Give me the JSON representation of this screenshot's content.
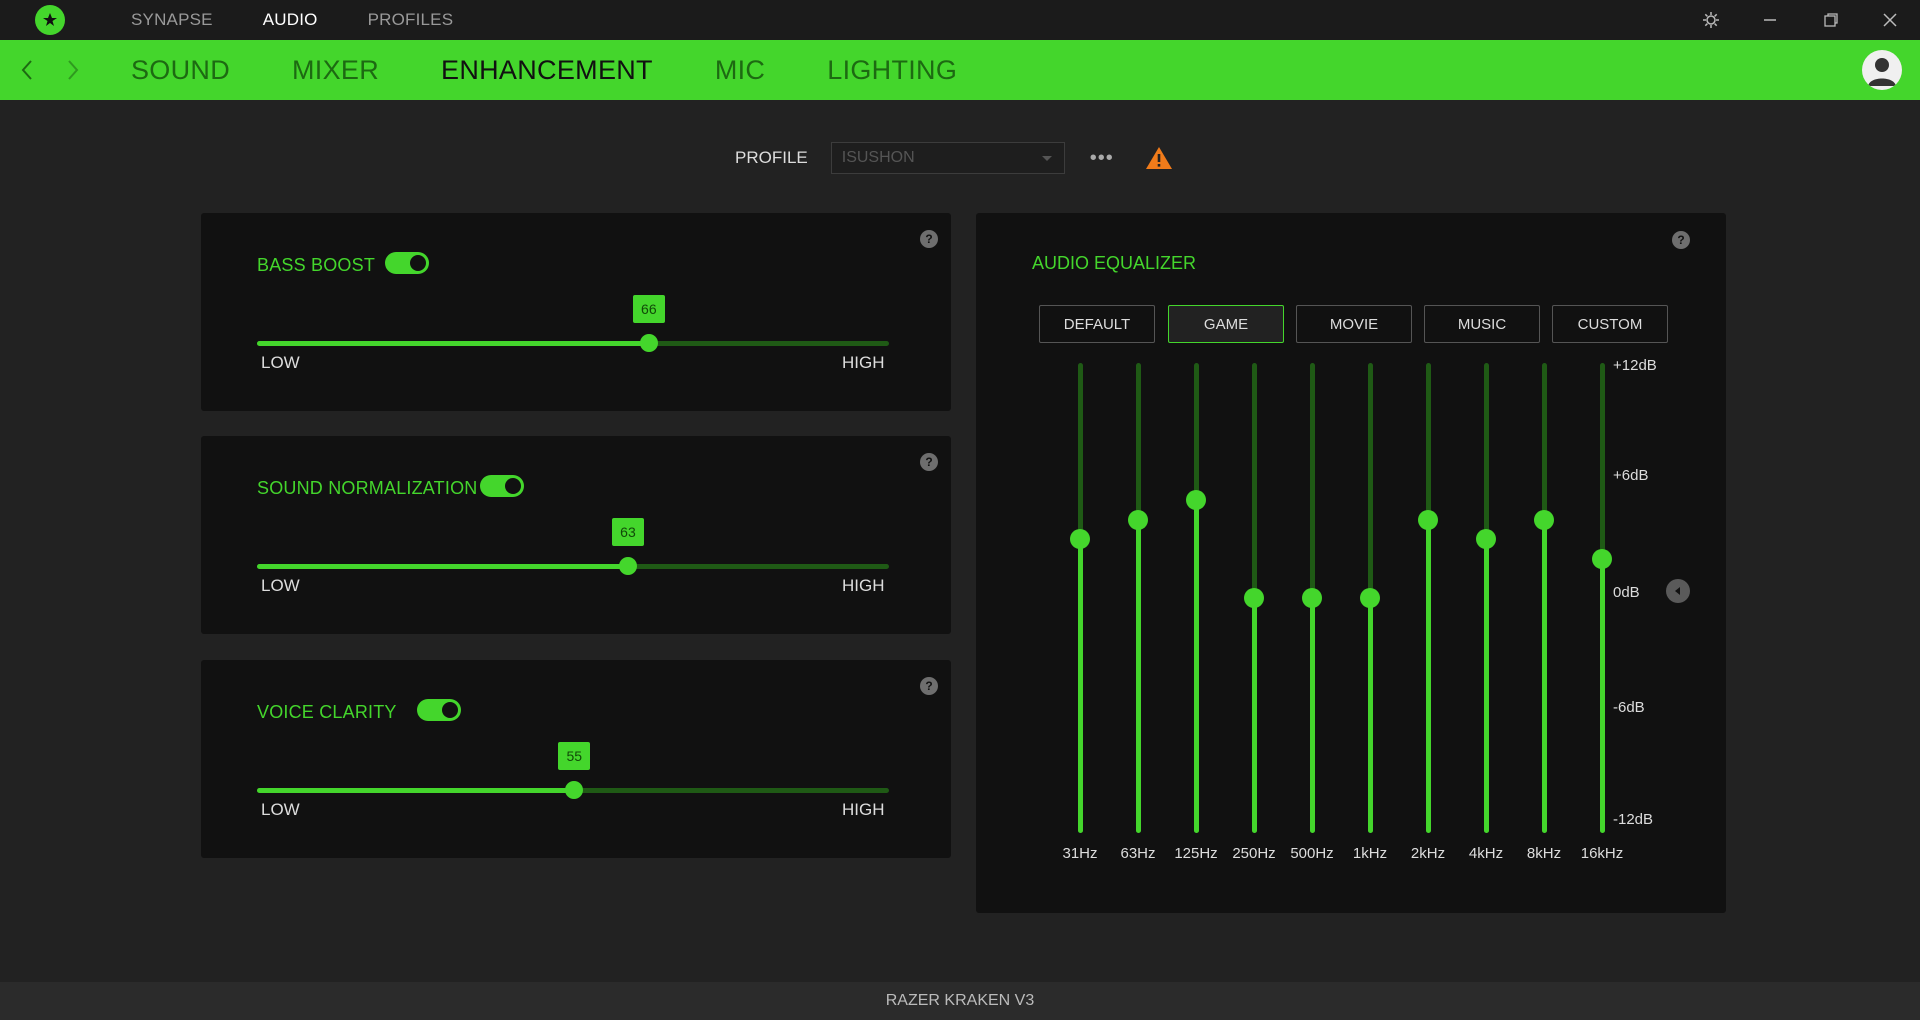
{
  "top_nav": [
    "SYNAPSE",
    "AUDIO",
    "PROFILES"
  ],
  "top_nav_active": "AUDIO",
  "sub_nav": [
    "SOUND",
    "MIXER",
    "ENHANCEMENT",
    "MIC",
    "LIGHTING"
  ],
  "sub_nav_active": "ENHANCEMENT",
  "profile": {
    "label": "PROFILE",
    "value": "ISUSHON",
    "more": "•••"
  },
  "help_glyph": "?",
  "enhancements": [
    {
      "title": "BASS BOOST",
      "enabled": true,
      "value": "66",
      "level": 0.62,
      "low": "LOW",
      "high": "HIGH"
    },
    {
      "title": "SOUND NORMALIZATION",
      "enabled": true,
      "value": "63",
      "level": 0.587,
      "low": "LOW",
      "high": "HIGH"
    },
    {
      "title": "VOICE CLARITY",
      "enabled": true,
      "value": "55",
      "level": 0.502,
      "low": "LOW",
      "high": "HIGH"
    }
  ],
  "equalizer": {
    "title": "AUDIO EQUALIZER",
    "presets": [
      "DEFAULT",
      "GAME",
      "MOVIE",
      "MUSIC",
      "CUSTOM"
    ],
    "active_preset": "GAME",
    "db_labels": [
      "+12dB",
      "+6dB",
      "0dB",
      "-6dB",
      "-12dB"
    ],
    "bands": [
      {
        "freq": "31Hz",
        "db": 3
      },
      {
        "freq": "63Hz",
        "db": 4
      },
      {
        "freq": "125Hz",
        "db": 5
      },
      {
        "freq": "250Hz",
        "db": 0
      },
      {
        "freq": "500Hz",
        "db": 0
      },
      {
        "freq": "1kHz",
        "db": 0
      },
      {
        "freq": "2kHz",
        "db": 4
      },
      {
        "freq": "4kHz",
        "db": 3
      },
      {
        "freq": "8kHz",
        "db": 4
      },
      {
        "freq": "16kHz",
        "db": 2
      }
    ]
  },
  "device_name": "RAZER KRAKEN V3",
  "colors": {
    "accent": "#44d62c",
    "background": "#222222",
    "panel": "#111111",
    "warning": "#f07b1a"
  }
}
